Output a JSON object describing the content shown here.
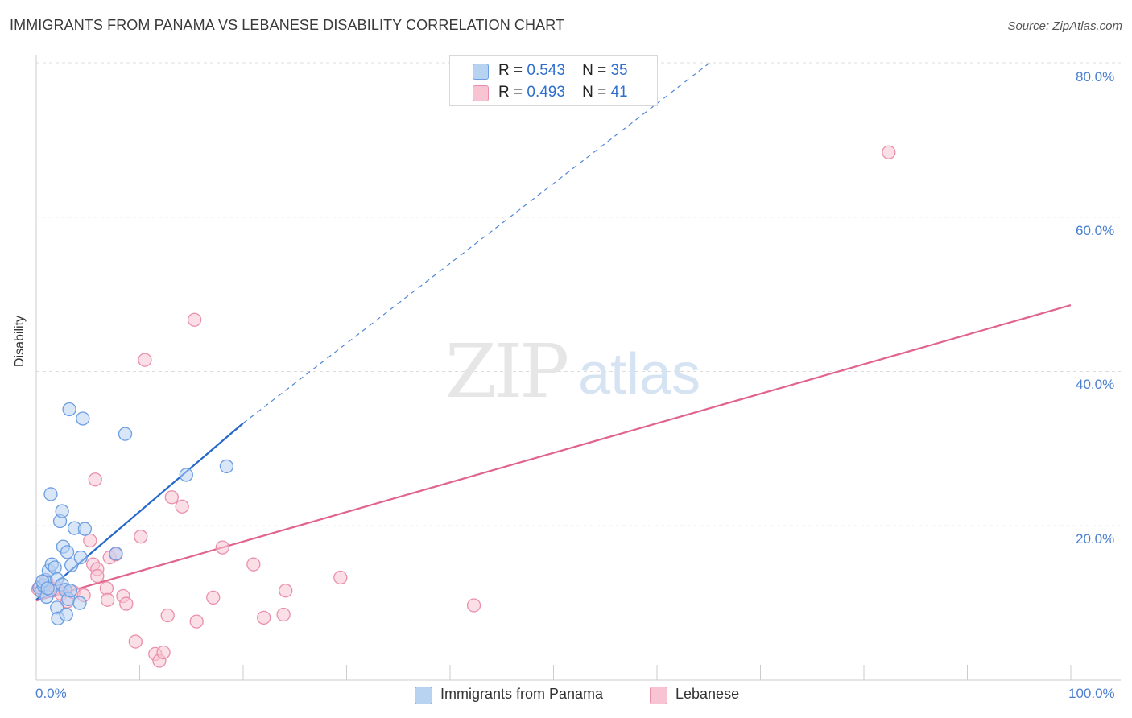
{
  "title": "IMMIGRANTS FROM PANAMA VS LEBANESE DISABILITY CORRELATION CHART",
  "source": "Source: ZipAtlas.com",
  "watermark": {
    "zip": "ZIP",
    "atlas": "atlas"
  },
  "legend": {
    "r_label": "R =",
    "n_label": "N =",
    "series": [
      {
        "r": "0.543",
        "n": "35"
      },
      {
        "r": "0.493",
        "n": "41"
      }
    ]
  },
  "colors": {
    "panama_fill": "#b8d2f2",
    "panama_stroke": "#6b9ee3",
    "panama_line": "#2468cc",
    "lebanese_fill": "#f8c4d3",
    "lebanese_stroke": "#ea8eac",
    "lebanese_line": "#e0648e",
    "tick_text": "#4a7fd0"
  },
  "chart_data": {
    "type": "scatter",
    "title": "IMMIGRANTS FROM PANAMA VS LEBANESE DISABILITY CORRELATION CHART",
    "xlabel": "",
    "ylabel": "Disability",
    "xlim": [
      0,
      100
    ],
    "ylim": [
      0,
      82
    ],
    "x_tick_labels": [
      "0.0%",
      "100.0%"
    ],
    "y_ticks": [
      20,
      40,
      60,
      80
    ],
    "y_tick_labels": [
      "20.0%",
      "40.0%",
      "60.0%",
      "80.0%"
    ],
    "grid": true,
    "legend_position": "top-center",
    "series": [
      {
        "name": "Immigrants from Panama",
        "points": [
          [
            0.3,
            12.0
          ],
          [
            0.5,
            11.5
          ],
          [
            0.7,
            12.3
          ],
          [
            0.9,
            13.0
          ],
          [
            1.0,
            10.8
          ],
          [
            1.2,
            14.2
          ],
          [
            1.4,
            11.7
          ],
          [
            1.5,
            15.0
          ],
          [
            1.4,
            24.1
          ],
          [
            1.8,
            14.6
          ],
          [
            2.0,
            13.1
          ],
          [
            2.0,
            9.4
          ],
          [
            2.1,
            8.0
          ],
          [
            2.3,
            20.6
          ],
          [
            2.5,
            12.4
          ],
          [
            2.5,
            21.9
          ],
          [
            2.6,
            17.3
          ],
          [
            2.8,
            11.7
          ],
          [
            2.9,
            8.5
          ],
          [
            3.0,
            16.6
          ],
          [
            3.1,
            10.5
          ],
          [
            3.2,
            35.1
          ],
          [
            3.3,
            11.6
          ],
          [
            3.4,
            14.9
          ],
          [
            3.7,
            19.7
          ],
          [
            4.2,
            10.0
          ],
          [
            4.3,
            15.9
          ],
          [
            4.5,
            33.9
          ],
          [
            4.7,
            19.6
          ],
          [
            7.7,
            16.4
          ],
          [
            8.6,
            31.9
          ],
          [
            14.5,
            26.6
          ],
          [
            18.4,
            27.7
          ],
          [
            0.6,
            12.8
          ],
          [
            1.1,
            11.9
          ]
        ]
      },
      {
        "name": "Lebanese",
        "points": [
          [
            0.2,
            11.8
          ],
          [
            0.4,
            12.2
          ],
          [
            0.8,
            11.4
          ],
          [
            1.0,
            12.8
          ],
          [
            1.6,
            11.6
          ],
          [
            2.0,
            11.9
          ],
          [
            2.4,
            11.2
          ],
          [
            3.0,
            10.2
          ],
          [
            3.6,
            11.4
          ],
          [
            4.6,
            11.0
          ],
          [
            5.2,
            18.1
          ],
          [
            5.5,
            15.0
          ],
          [
            5.7,
            26.0
          ],
          [
            5.9,
            14.4
          ],
          [
            5.9,
            13.5
          ],
          [
            6.8,
            11.9
          ],
          [
            6.9,
            10.4
          ],
          [
            7.1,
            15.9
          ],
          [
            7.7,
            16.3
          ],
          [
            8.4,
            10.9
          ],
          [
            8.7,
            9.9
          ],
          [
            9.6,
            5.0
          ],
          [
            10.1,
            18.6
          ],
          [
            10.5,
            41.5
          ],
          [
            11.5,
            3.4
          ],
          [
            11.9,
            2.5
          ],
          [
            12.3,
            3.6
          ],
          [
            12.7,
            8.4
          ],
          [
            13.1,
            23.7
          ],
          [
            14.1,
            22.5
          ],
          [
            15.3,
            46.7
          ],
          [
            15.5,
            7.6
          ],
          [
            17.1,
            10.7
          ],
          [
            18.0,
            17.2
          ],
          [
            21.0,
            15.0
          ],
          [
            22.0,
            8.1
          ],
          [
            24.1,
            11.6
          ],
          [
            23.9,
            8.5
          ],
          [
            29.4,
            13.3
          ],
          [
            42.3,
            9.7
          ],
          [
            82.4,
            68.4
          ]
        ]
      }
    ],
    "trend_lines": [
      {
        "name": "Immigrants from Panama",
        "solid": [
          [
            0,
            10.4
          ],
          [
            20,
            33.3
          ]
        ],
        "dashed": [
          [
            20,
            33.3
          ],
          [
            65.1,
            80.0
          ]
        ]
      },
      {
        "name": "Lebanese",
        "solid": [
          [
            0,
            10.3
          ],
          [
            100,
            48.6
          ]
        ]
      }
    ]
  }
}
